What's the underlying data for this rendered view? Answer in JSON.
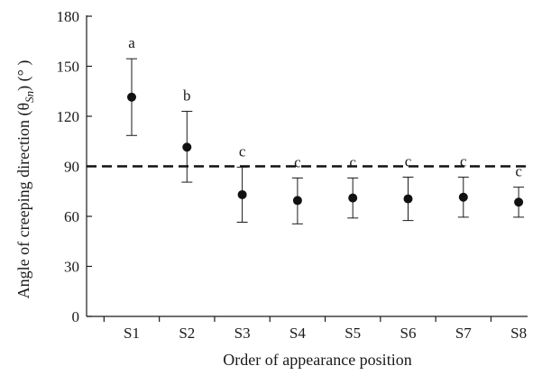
{
  "chart_data": {
    "type": "scatter",
    "title": "",
    "xlabel": "Order of appearance position",
    "ylabel_main": "Angle of creeping direction (θ",
    "ylabel_sub": "Sn",
    "ylabel_end": ") (°  )",
    "categories": [
      "S1",
      "S2",
      "S3",
      "S4",
      "S5",
      "S6",
      "S7",
      "S8"
    ],
    "series": [
      {
        "values": [
          131.5,
          101.5,
          73,
          69.5,
          71,
          70.5,
          71.5,
          68.5
        ],
        "error_upper": [
          154.5,
          123,
          89.5,
          83,
          83,
          83.5,
          83.5,
          77.5
        ],
        "error_lower": [
          108.5,
          80.5,
          56.5,
          55.5,
          59,
          57.5,
          59.5,
          59.5
        ]
      }
    ],
    "significance_labels": [
      "a",
      "b",
      "c",
      "c",
      "c",
      "c",
      "c",
      "c"
    ],
    "yticks": [
      0,
      30,
      60,
      90,
      120,
      150,
      180
    ],
    "ylim": [
      0,
      180
    ],
    "reference_line": {
      "y": 90,
      "style": "dashed"
    },
    "grid": false,
    "legend": "none"
  }
}
